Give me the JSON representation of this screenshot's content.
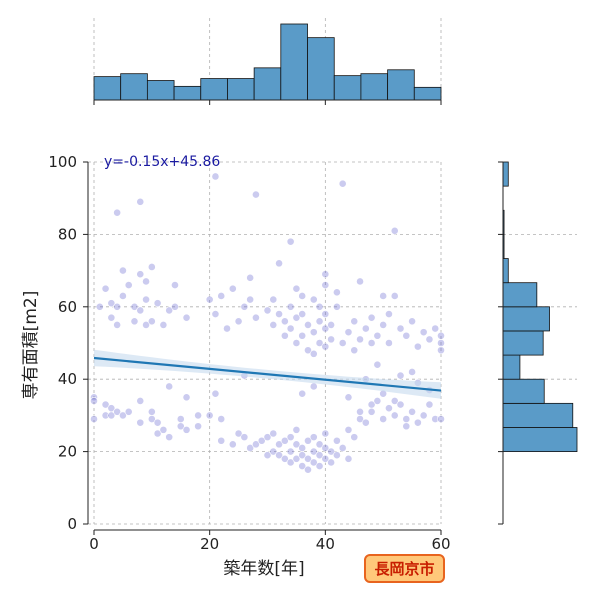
{
  "chart_data": {
    "type": "scatter",
    "title": "",
    "xlabel": "築年数[年]",
    "ylabel": "専有面積[m2]",
    "xlim": [
      -1,
      60
    ],
    "ylim": [
      0,
      100
    ],
    "xticks": [
      0,
      20,
      40,
      60
    ],
    "yticks": [
      0,
      20,
      40,
      60,
      80,
      100
    ],
    "grid": true,
    "regression": {
      "label": "y=-0.15x+45.86",
      "slope": -0.15,
      "intercept": 45.86,
      "color": "#1f77b4",
      "ci_color": "#c6dbef"
    },
    "badge": "長岡京市",
    "point_color": "#6a6ad0",
    "hist_color": "#5a9bc8",
    "points": [
      [
        0,
        35
      ],
      [
        0,
        29
      ],
      [
        0,
        34
      ],
      [
        2,
        30
      ],
      [
        2,
        33
      ],
      [
        3,
        32
      ],
      [
        3,
        30
      ],
      [
        4,
        31
      ],
      [
        5,
        30
      ],
      [
        6,
        31
      ],
      [
        8,
        28
      ],
      [
        8,
        34
      ],
      [
        10,
        29
      ],
      [
        10,
        31
      ],
      [
        11,
        25
      ],
      [
        11,
        28
      ],
      [
        12,
        26
      ],
      [
        13,
        24
      ],
      [
        15,
        27
      ],
      [
        15,
        29
      ],
      [
        16,
        26
      ],
      [
        18,
        27
      ],
      [
        18,
        30
      ],
      [
        20,
        30
      ],
      [
        22,
        29
      ],
      [
        22,
        23
      ],
      [
        24,
        22
      ],
      [
        25,
        25
      ],
      [
        26,
        24
      ],
      [
        27,
        21
      ],
      [
        28,
        22
      ],
      [
        29,
        23
      ],
      [
        30,
        19
      ],
      [
        30,
        24
      ],
      [
        31,
        20
      ],
      [
        31,
        25
      ],
      [
        32,
        22
      ],
      [
        32,
        19
      ],
      [
        33,
        23
      ],
      [
        33,
        18
      ],
      [
        34,
        20
      ],
      [
        34,
        17
      ],
      [
        34,
        24
      ],
      [
        35,
        22
      ],
      [
        35,
        18
      ],
      [
        35,
        26
      ],
      [
        36,
        19
      ],
      [
        36,
        16
      ],
      [
        36,
        21
      ],
      [
        37,
        23
      ],
      [
        37,
        18
      ],
      [
        37,
        15
      ],
      [
        38,
        20
      ],
      [
        38,
        17
      ],
      [
        38,
        24
      ],
      [
        39,
        19
      ],
      [
        39,
        16
      ],
      [
        39,
        22
      ],
      [
        40,
        21
      ],
      [
        40,
        18
      ],
      [
        40,
        25
      ],
      [
        41,
        20
      ],
      [
        41,
        17
      ],
      [
        42,
        19
      ],
      [
        42,
        23
      ],
      [
        43,
        21
      ],
      [
        44,
        18
      ],
      [
        44,
        26
      ],
      [
        45,
        24
      ],
      [
        46,
        29
      ],
      [
        46,
        31
      ],
      [
        47,
        28
      ],
      [
        48,
        33
      ],
      [
        48,
        31
      ],
      [
        49,
        34
      ],
      [
        50,
        29
      ],
      [
        50,
        36
      ],
      [
        51,
        32
      ],
      [
        52,
        34
      ],
      [
        52,
        30
      ],
      [
        53,
        33
      ],
      [
        54,
        29
      ],
      [
        54,
        27
      ],
      [
        55,
        31
      ],
      [
        56,
        28
      ],
      [
        57,
        30
      ],
      [
        58,
        33
      ],
      [
        59,
        29
      ],
      [
        60,
        29
      ],
      [
        1,
        60
      ],
      [
        2,
        65
      ],
      [
        3,
        57
      ],
      [
        3,
        61
      ],
      [
        4,
        60
      ],
      [
        4,
        55
      ],
      [
        5,
        63
      ],
      [
        6,
        66
      ],
      [
        7,
        56
      ],
      [
        7,
        60
      ],
      [
        8,
        59
      ],
      [
        9,
        55
      ],
      [
        9,
        62
      ],
      [
        10,
        56
      ],
      [
        11,
        61
      ],
      [
        12,
        55
      ],
      [
        13,
        59
      ],
      [
        14,
        60
      ],
      [
        16,
        57
      ],
      [
        20,
        62
      ],
      [
        21,
        58
      ],
      [
        22,
        63
      ],
      [
        23,
        54
      ],
      [
        25,
        56
      ],
      [
        26,
        60
      ],
      [
        27,
        62
      ],
      [
        28,
        57
      ],
      [
        30,
        59
      ],
      [
        31,
        55
      ],
      [
        31,
        62
      ],
      [
        32,
        58
      ],
      [
        33,
        52
      ],
      [
        33,
        56
      ],
      [
        34,
        60
      ],
      [
        34,
        54
      ],
      [
        35,
        57
      ],
      [
        35,
        50
      ],
      [
        36,
        58
      ],
      [
        36,
        52
      ],
      [
        37,
        55
      ],
      [
        37,
        48
      ],
      [
        38,
        62
      ],
      [
        38,
        53
      ],
      [
        38,
        47
      ],
      [
        39,
        56
      ],
      [
        39,
        50
      ],
      [
        39,
        60
      ],
      [
        40,
        54
      ],
      [
        40,
        58
      ],
      [
        40,
        49
      ],
      [
        41,
        55
      ],
      [
        41,
        51
      ],
      [
        42,
        60
      ],
      [
        43,
        50
      ],
      [
        44,
        53
      ],
      [
        45,
        48
      ],
      [
        45,
        56
      ],
      [
        46,
        51
      ],
      [
        47,
        54
      ],
      [
        48,
        50
      ],
      [
        48,
        57
      ],
      [
        49,
        52
      ],
      [
        50,
        55
      ],
      [
        51,
        50
      ],
      [
        51,
        58
      ],
      [
        52,
        63
      ],
      [
        53,
        54
      ],
      [
        54,
        52
      ],
      [
        55,
        56
      ],
      [
        56,
        49
      ],
      [
        57,
        53
      ],
      [
        58,
        51
      ],
      [
        59,
        54
      ],
      [
        60,
        50
      ],
      [
        60,
        52
      ],
      [
        60,
        48
      ],
      [
        8,
        69
      ],
      [
        9,
        67
      ],
      [
        5,
        70
      ],
      [
        10,
        71
      ],
      [
        14,
        66
      ],
      [
        24,
        65
      ],
      [
        27,
        68
      ],
      [
        32,
        72
      ],
      [
        35,
        65
      ],
      [
        36,
        63
      ],
      [
        40,
        69
      ],
      [
        40,
        66
      ],
      [
        42,
        64
      ],
      [
        46,
        67
      ],
      [
        50,
        63
      ],
      [
        4,
        86
      ],
      [
        8,
        89
      ],
      [
        21,
        96
      ],
      [
        28,
        91
      ],
      [
        34,
        78
      ],
      [
        43,
        94
      ],
      [
        52,
        81
      ],
      [
        13,
        38
      ],
      [
        21,
        36
      ],
      [
        36,
        36
      ],
      [
        44,
        35
      ],
      [
        47,
        40
      ],
      [
        53,
        41
      ],
      [
        56,
        39
      ],
      [
        58,
        37
      ],
      [
        26,
        41
      ],
      [
        16,
        35
      ],
      [
        38,
        38
      ],
      [
        49,
        44
      ],
      [
        55,
        42
      ]
    ],
    "x_hist": {
      "bins": [
        0,
        4.615,
        9.23,
        13.846,
        18.46,
        23.077,
        27.69,
        32.3,
        36.92,
        41.54,
        46.15,
        50.77,
        55.38,
        60
      ],
      "counts": [
        24,
        27,
        20,
        14,
        22,
        22,
        33,
        78,
        64,
        25,
        27,
        31,
        13
      ]
    },
    "y_hist": {
      "bins": [
        0,
        6.66,
        13.33,
        20,
        26.66,
        33.33,
        40,
        46.66,
        53.33,
        60,
        66.66,
        73.33,
        80,
        86.66,
        93.33,
        100
      ],
      "counts": [
        0,
        0,
        0,
        70,
        66,
        39,
        16,
        38,
        44,
        32,
        5,
        1,
        1,
        0,
        5
      ]
    }
  }
}
